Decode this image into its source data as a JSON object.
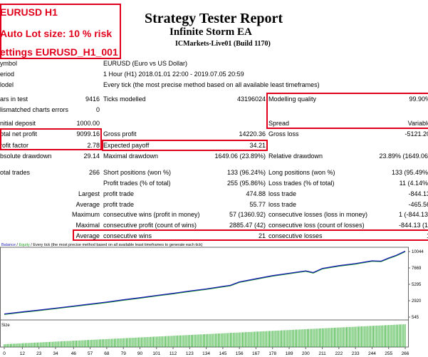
{
  "overlay": {
    "line1": "EURUSD H1",
    "line2": "Auto Lot size: 10 % risk",
    "line3": "ettings EURUSD_H1_001"
  },
  "header": {
    "title": "Strategy Tester Report",
    "ea_name": "Infinite Storm EA",
    "server": "ICMarkets-Live01 (Build 1170)"
  },
  "info": {
    "symbol_label": "ymbol",
    "symbol_value": "EURUSD (Euro vs US Dollar)",
    "period_label": "eriod",
    "period_value": "1 Hour (H1) 2018.01.01 22:00 - 2019.07.05 20:59",
    "model_label": "lodel",
    "model_value": "Every tick (the most precise method based on all available least timeframes)"
  },
  "stats": {
    "bars_label": "ars in test",
    "bars_value": "9416",
    "ticks_label": "Ticks modelled",
    "ticks_value": "43196024",
    "mq_label": "Modelling quality",
    "mq_value": "99.90%",
    "mismatch_label": "lismatched charts errors",
    "mismatch_value": "0",
    "spread_label": "Spread",
    "spread_value": "Variable",
    "deposit_label": "nitial deposit",
    "deposit_value": "1000.00",
    "netprofit_label": "otal net profit",
    "netprofit_value": "9099.16",
    "grossprofit_label": "Gross profit",
    "grossprofit_value": "14220.36",
    "grossloss_label": "Gross loss",
    "grossloss_value": "-5121.20",
    "pf_label": "rofit factor",
    "pf_value": "2.78",
    "ep_label": "Expected payoff",
    "ep_value": "34.21",
    "absdd_label": "bsolute drawdown",
    "absdd_value": "29.14",
    "maxdd_label": "Maximal drawdown",
    "maxdd_value": "1649.06 (23.89%)",
    "reldd_label": "Relative drawdown",
    "reldd_value": "23.89% (1649.06)",
    "trades_label": "otal trades",
    "trades_value": "266",
    "short_label": "Short positions (won %)",
    "short_value": "133 (96.24%)",
    "long_label": "Long positions (won %)",
    "long_value": "133 (95.49%)",
    "pt_label": "Profit trades (% of total)",
    "pt_value": "255 (95.86%)",
    "lt_label": "Loss trades (% of total)",
    "lt_value": "11 (4.14%)",
    "largest": "Largest",
    "lpt_label": "profit trade",
    "lpt_value": "474.88",
    "llt_label": "loss trade",
    "llt_value": "-844.13",
    "average": "Average",
    "apt_label": "profit trade",
    "apt_value": "55.77",
    "alt_label": "loss trade",
    "alt_value": "-465.56",
    "maximum": "Maximum",
    "mcw_label": "consecutive wins (profit in money)",
    "mcw_value": "57 (1360.92)",
    "mcl_label": "consecutive losses (loss in money)",
    "mcl_value": "1 (-844.13)",
    "maximal": "Maximal",
    "mcp_label": "consecutive profit (count of wins)",
    "mcp_value": "2885.47 (42)",
    "mcls_label": "consecutive loss (count of losses)",
    "mcls_value": "-844.13 (1)",
    "average2": "Average",
    "acw_label": "consecutive wins",
    "acw_value": "21",
    "acl_label": "consecutive losses",
    "acl_value": "1"
  },
  "chart_data": {
    "type": "line",
    "legend_text": "Balance / Equity / Every tick (the most precise method based on all available least timeframes to generate each tick)",
    "legend_balance": "Balance",
    "legend_sep1": " / ",
    "legend_equity": "Equity",
    "legend_rest": " / Every tick (the most precise method based on all available least timeframes to generate each tick)",
    "y_ticks": [
      "10044",
      "7669",
      "5295",
      "2920",
      "545"
    ],
    "size_label": "Size",
    "x_ticks": [
      "0",
      "12",
      "23",
      "34",
      "46",
      "57",
      "68",
      "79",
      "90",
      "101",
      "112",
      "123",
      "134",
      "145",
      "156",
      "167",
      "178",
      "189",
      "200",
      "211",
      "222",
      "233",
      "244",
      "255",
      "266"
    ],
    "balance_color": "#1a1ab5",
    "equity_color": "#1ca51c",
    "balance": [
      [
        0,
        1000
      ],
      [
        12,
        1300
      ],
      [
        23,
        1560
      ],
      [
        34,
        1840
      ],
      [
        46,
        2150
      ],
      [
        57,
        2430
      ],
      [
        68,
        2720
      ],
      [
        79,
        3050
      ],
      [
        90,
        3350
      ],
      [
        101,
        3680
      ],
      [
        112,
        3980
      ],
      [
        123,
        4320
      ],
      [
        134,
        4620
      ],
      [
        145,
        5000
      ],
      [
        150,
        5150
      ],
      [
        156,
        5650
      ],
      [
        167,
        6100
      ],
      [
        178,
        6550
      ],
      [
        189,
        6900
      ],
      [
        200,
        7250
      ],
      [
        205,
        7000
      ],
      [
        211,
        7600
      ],
      [
        222,
        8000
      ],
      [
        233,
        8300
      ],
      [
        244,
        8700
      ],
      [
        250,
        8650
      ],
      [
        255,
        9100
      ],
      [
        260,
        9500
      ],
      [
        266,
        10099
      ]
    ]
  }
}
